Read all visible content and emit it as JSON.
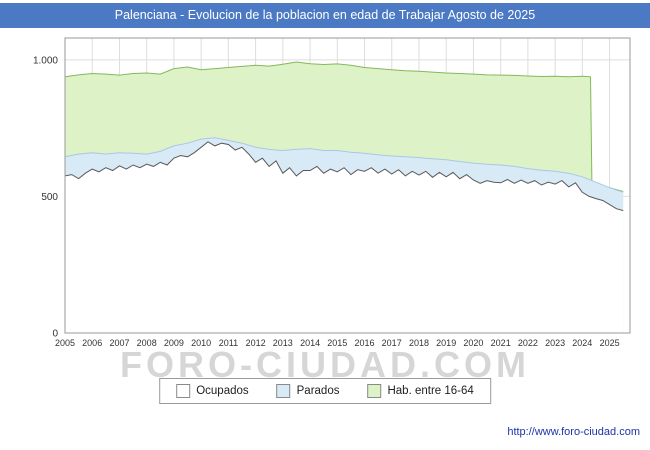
{
  "watermark": {
    "text": "FORO-CIUDAD.COM"
  },
  "footer": {
    "url_label": "http://www.foro-ciudad.com"
  },
  "colors": {
    "title_bar_bg": "#4b79c4",
    "title_text": "#ffffff",
    "footer_link": "#1a35a8",
    "watermark": "#d6d6d6",
    "gridline": "#dddddd",
    "plot_border": "#999999",
    "tick_text": "#333333"
  },
  "chart_data": {
    "type": "area",
    "title": "Palenciana - Evolucion de la poblacion en edad de Trabajar Agosto de 2025",
    "xlabel": "",
    "ylabel": "",
    "xlim": [
      2005,
      2025.75
    ],
    "ylim": [
      0,
      1080
    ],
    "grid": true,
    "stacking": "overlay - each series lists the plotted top boundary of its area",
    "xticks": [
      2005,
      2006,
      2007,
      2008,
      2009,
      2010,
      2011,
      2012,
      2013,
      2014,
      2015,
      2016,
      2017,
      2018,
      2019,
      2020,
      2021,
      2022,
      2023,
      2024,
      2025
    ],
    "yticks": [
      {
        "value": 0,
        "label": "0"
      },
      {
        "value": 500,
        "label": "500"
      },
      {
        "value": 1000,
        "label": "1.000"
      }
    ],
    "series": [
      {
        "name": "Hab. entre 16-64",
        "fill": "#def2c8",
        "stroke": "#84b85a",
        "x": [
          2005,
          2005.5,
          2006,
          2006.5,
          2007,
          2007.5,
          2008,
          2008.5,
          2009,
          2009.5,
          2010,
          2010.5,
          2011,
          2011.5,
          2012,
          2012.5,
          2013,
          2013.5,
          2014,
          2014.5,
          2015,
          2015.5,
          2016,
          2016.5,
          2017,
          2017.5,
          2018,
          2018.5,
          2019,
          2019.5,
          2020,
          2020.5,
          2021,
          2021.5,
          2022,
          2022.5,
          2023,
          2023.5,
          2024,
          2024.3,
          2024.35,
          2024.5,
          2025,
          2025.5
        ],
        "values": [
          938,
          945,
          950,
          948,
          944,
          950,
          952,
          948,
          968,
          974,
          964,
          968,
          972,
          976,
          980,
          977,
          984,
          992,
          986,
          983,
          985,
          980,
          972,
          968,
          964,
          960,
          958,
          955,
          952,
          950,
          948,
          945,
          944,
          943,
          941,
          939,
          940,
          938,
          940,
          938,
          552,
          548,
          532,
          518
        ]
      },
      {
        "name": "Parados",
        "fill": "#d9eaf7",
        "stroke": "#a8c8e4",
        "x": [
          2005,
          2005.5,
          2006,
          2006.5,
          2007,
          2007.5,
          2008,
          2008.5,
          2009,
          2009.5,
          2010,
          2010.5,
          2011,
          2011.5,
          2012,
          2012.5,
          2013,
          2013.5,
          2014,
          2014.5,
          2015,
          2015.5,
          2016,
          2016.5,
          2017,
          2017.5,
          2018,
          2018.5,
          2019,
          2019.5,
          2020,
          2020.5,
          2021,
          2021.5,
          2022,
          2022.5,
          2023,
          2023.5,
          2024,
          2024.5,
          2025,
          2025.5
        ],
        "values": [
          645,
          655,
          660,
          655,
          660,
          658,
          655,
          665,
          685,
          695,
          710,
          715,
          705,
          695,
          680,
          672,
          668,
          672,
          675,
          668,
          668,
          662,
          658,
          652,
          648,
          645,
          642,
          638,
          634,
          628,
          622,
          618,
          615,
          610,
          602,
          596,
          592,
          585,
          572,
          552,
          532,
          515
        ]
      },
      {
        "name": "Ocupados",
        "fill": "#ffffff",
        "stroke": "#595959",
        "x": [
          2005,
          2005.25,
          2005.5,
          2005.75,
          2006,
          2006.25,
          2006.5,
          2006.75,
          2007,
          2007.25,
          2007.5,
          2007.75,
          2008,
          2008.25,
          2008.5,
          2008.75,
          2009,
          2009.25,
          2009.5,
          2009.75,
          2010,
          2010.25,
          2010.5,
          2010.75,
          2011,
          2011.25,
          2011.5,
          2011.75,
          2012,
          2012.25,
          2012.5,
          2012.75,
          2013,
          2013.25,
          2013.5,
          2013.75,
          2014,
          2014.25,
          2014.5,
          2014.75,
          2015,
          2015.25,
          2015.5,
          2015.75,
          2016,
          2016.25,
          2016.5,
          2016.75,
          2017,
          2017.25,
          2017.5,
          2017.75,
          2018,
          2018.25,
          2018.5,
          2018.75,
          2019,
          2019.25,
          2019.5,
          2019.75,
          2020,
          2020.25,
          2020.5,
          2020.75,
          2021,
          2021.25,
          2021.5,
          2021.75,
          2022,
          2022.25,
          2022.5,
          2022.75,
          2023,
          2023.25,
          2023.5,
          2023.75,
          2024,
          2024.25,
          2024.5,
          2024.75,
          2025,
          2025.25,
          2025.5
        ],
        "values": [
          575,
          580,
          565,
          585,
          600,
          590,
          605,
          595,
          612,
          600,
          615,
          605,
          618,
          610,
          625,
          615,
          640,
          650,
          645,
          660,
          680,
          700,
          685,
          695,
          690,
          670,
          680,
          655,
          625,
          640,
          610,
          630,
          585,
          605,
          575,
          595,
          595,
          610,
          585,
          600,
          590,
          605,
          580,
          598,
          592,
          605,
          585,
          600,
          582,
          598,
          575,
          592,
          578,
          592,
          570,
          588,
          572,
          588,
          565,
          580,
          560,
          548,
          558,
          552,
          550,
          562,
          548,
          560,
          548,
          558,
          542,
          552,
          545,
          558,
          535,
          550,
          515,
          500,
          492,
          485,
          470,
          455,
          448
        ]
      }
    ],
    "legend": {
      "position": "bottom",
      "items": [
        {
          "label": "Ocupados",
          "fill": "#ffffff"
        },
        {
          "label": "Parados",
          "fill": "#d9eaf7"
        },
        {
          "label": "Hab. entre 16-64",
          "fill": "#def2c8"
        }
      ]
    }
  }
}
